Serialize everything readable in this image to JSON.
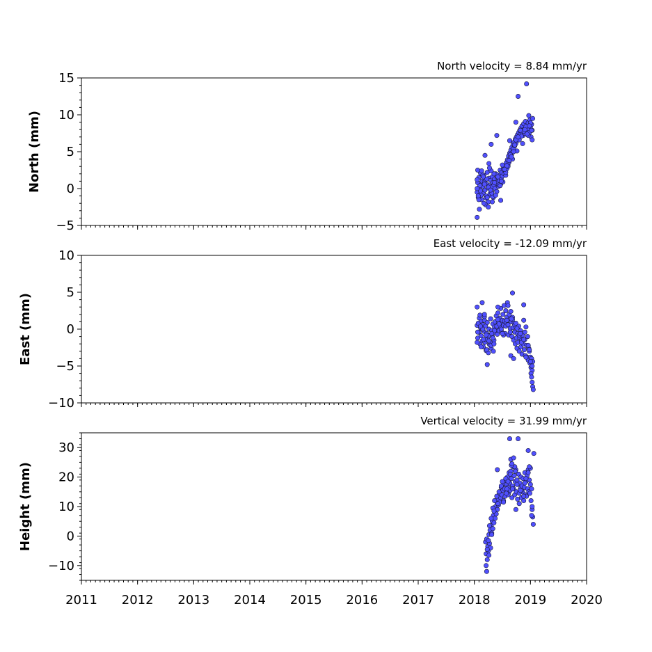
{
  "chart_data": [
    {
      "type": "scatter",
      "title": "North velocity = 8.84 mm/yr",
      "ylabel": "North (mm)",
      "xlim": [
        2011,
        2020
      ],
      "ylim": [
        -5,
        15
      ],
      "yticks": [
        -5,
        0,
        5,
        10,
        15
      ],
      "xticks": [
        2011,
        2012,
        2013,
        2014,
        2015,
        2016,
        2017,
        2018,
        2019,
        2020
      ],
      "color": "#5050ff",
      "series": [
        {
          "x": [
            2018.05,
            2018.06,
            2018.07,
            2018.08,
            2018.09,
            2018.1,
            2018.11,
            2018.12,
            2018.13,
            2018.14,
            2018.15,
            2018.16,
            2018.17,
            2018.18,
            2018.19,
            2018.2,
            2018.21,
            2018.22,
            2018.23,
            2018.24,
            2018.25,
            2018.26,
            2018.27,
            2018.28,
            2018.29,
            2018.3,
            2018.31,
            2018.32,
            2018.33,
            2018.34,
            2018.35,
            2018.36,
            2018.37,
            2018.38,
            2018.39,
            2018.4,
            2018.41,
            2018.42,
            2018.43,
            2018.44,
            2018.45,
            2018.46,
            2018.47,
            2018.48,
            2018.49,
            2018.5,
            2018.51,
            2018.52,
            2018.53,
            2018.54,
            2018.55,
            2018.56,
            2018.57,
            2018.58,
            2018.59,
            2018.6,
            2018.61,
            2018.62,
            2018.63,
            2018.64,
            2018.65,
            2018.66,
            2018.67,
            2018.68,
            2018.69,
            2018.7,
            2018.71,
            2018.72,
            2018.73,
            2018.74,
            2018.75,
            2018.76,
            2018.77,
            2018.78,
            2018.79,
            2018.8,
            2018.81,
            2018.82,
            2018.83,
            2018.84,
            2018.85,
            2018.86,
            2018.87,
            2018.88,
            2018.89,
            2018.9,
            2018.91,
            2018.92,
            2018.93,
            2018.94,
            2018.95,
            2018.96,
            2018.97,
            2018.98,
            2018.99,
            2019.0,
            2019.01,
            2019.02,
            2019.03,
            2019.04,
            2018.05,
            2018.08,
            2018.1,
            2018.12,
            2018.15,
            2018.18,
            2018.2,
            2018.22,
            2018.25,
            2018.28,
            2018.3,
            2018.33,
            2018.36,
            2018.4,
            2018.44,
            2018.48,
            2018.52,
            2018.56,
            2018.6,
            2018.64,
            2018.68,
            2018.72,
            2018.76,
            2018.8,
            2018.84,
            2018.88,
            2018.92,
            2018.96,
            2019.0,
            2019.03,
            2018.06,
            2018.11,
            2018.16,
            2018.21,
            2018.26,
            2018.31,
            2018.35,
            2018.42,
            2018.5,
            2018.58,
            2018.66,
            2018.74,
            2018.82,
            2018.9,
            2018.98,
            2018.05,
            2018.07,
            2018.09,
            2018.13,
            2018.17,
            2018.19,
            2018.23,
            2018.27,
            2018.29,
            2018.32,
            2018.38,
            2018.46,
            2018.54,
            2018.62,
            2018.7,
            2018.78,
            2018.86,
            2018.94,
            2019.02,
            2018.05,
            2018.25,
            2018.3,
            2018.4,
            2018.47,
            2018.63,
            2018.78,
            2018.93,
            2018.74,
            2018.97
          ],
          "y": [
            -0.5,
            0.8,
            -1.2,
            1.5,
            0.2,
            -0.8,
            2.1,
            0.5,
            -1.5,
            1.0,
            0.3,
            -0.6,
            1.8,
            0.9,
            -0.2,
            1.2,
            -1.0,
            0.6,
            2.2,
            0.1,
            -1.8,
            1.4,
            0.4,
            -0.9,
            1.1,
            0.2,
            -0.5,
            1.6,
            0.8,
            -1.2,
            0.5,
            1.3,
            0.0,
            2.0,
            0.7,
            -0.4,
            1.5,
            0.9,
            0.3,
            1.8,
            1.1,
            2.5,
            0.6,
            1.4,
            2.2,
            1.7,
            0.9,
            2.8,
            2.0,
            3.1,
            2.4,
            1.8,
            3.5,
            2.7,
            3.9,
            3.2,
            4.4,
            3.6,
            4.8,
            4.1,
            5.2,
            4.5,
            5.6,
            4.9,
            6.0,
            5.4,
            6.3,
            5.8,
            6.7,
            6.1,
            7.0,
            6.5,
            7.3,
            6.8,
            7.6,
            7.1,
            7.9,
            7.4,
            8.2,
            7.7,
            8.5,
            7.9,
            7.2,
            8.8,
            8.0,
            7.5,
            9.1,
            8.3,
            7.8,
            8.6,
            7.3,
            8.9,
            8.1,
            7.6,
            9.3,
            8.4,
            7.0,
            8.7,
            7.9,
            9.5,
            1.2,
            -1.5,
            0.4,
            -0.9,
            1.8,
            0.6,
            -2.2,
            1.3,
            0.2,
            -0.7,
            2.4,
            -1.1,
            0.8,
            1.9,
            0.5,
            1.0,
            2.6,
            2.2,
            3.0,
            4.6,
            4.0,
            5.9,
            5.1,
            6.6,
            7.1,
            7.8,
            8.4,
            7.2,
            8.9,
            6.6,
            2.5,
            -0.3,
            1.6,
            -1.3,
            3.4,
            -0.6,
            2.0,
            1.6,
            3.2,
            3.1,
            4.3,
            6.6,
            7.9,
            8.0,
            8.5,
            0.0,
            -1.0,
            -2.8,
            2.4,
            -2.0,
            4.5,
            -1.2,
            2.8,
            -0.2,
            -1.8,
            -0.9,
            0.4,
            2.6,
            3.8,
            5.0,
            7.0,
            6.1,
            7.4,
            7.9,
            -3.9,
            -2.5,
            6.0,
            7.2,
            -1.6,
            6.5,
            12.5,
            14.2,
            9.0,
            9.9
          ]
        }
      ]
    },
    {
      "type": "scatter",
      "title": "East velocity = -12.09 mm/yr",
      "ylabel": "East (mm)",
      "xlim": [
        2011,
        2020
      ],
      "ylim": [
        -10,
        10
      ],
      "yticks": [
        -10,
        -5,
        0,
        5,
        10
      ],
      "xticks": [
        2011,
        2012,
        2013,
        2014,
        2015,
        2016,
        2017,
        2018,
        2019,
        2020
      ],
      "color": "#5050ff",
      "series": [
        {
          "x": [
            2018.05,
            2018.06,
            2018.07,
            2018.08,
            2018.09,
            2018.1,
            2018.11,
            2018.12,
            2018.13,
            2018.14,
            2018.15,
            2018.16,
            2018.17,
            2018.18,
            2018.19,
            2018.2,
            2018.21,
            2018.22,
            2018.23,
            2018.24,
            2018.25,
            2018.26,
            2018.27,
            2018.28,
            2018.29,
            2018.3,
            2018.31,
            2018.32,
            2018.33,
            2018.34,
            2018.35,
            2018.36,
            2018.37,
            2018.38,
            2018.39,
            2018.4,
            2018.41,
            2018.42,
            2018.43,
            2018.44,
            2018.45,
            2018.46,
            2018.47,
            2018.48,
            2018.49,
            2018.5,
            2018.51,
            2018.52,
            2018.53,
            2018.54,
            2018.55,
            2018.56,
            2018.57,
            2018.58,
            2018.59,
            2018.6,
            2018.61,
            2018.62,
            2018.63,
            2018.64,
            2018.65,
            2018.66,
            2018.67,
            2018.68,
            2018.69,
            2018.7,
            2018.71,
            2018.72,
            2018.73,
            2018.74,
            2018.75,
            2018.76,
            2018.77,
            2018.78,
            2018.79,
            2018.8,
            2018.81,
            2018.82,
            2018.83,
            2018.84,
            2018.85,
            2018.86,
            2018.87,
            2018.88,
            2018.89,
            2018.9,
            2018.91,
            2018.92,
            2018.93,
            2018.94,
            2018.95,
            2018.96,
            2018.97,
            2018.98,
            2018.99,
            2019.0,
            2019.01,
            2019.02,
            2019.03,
            2019.04,
            2018.05,
            2018.08,
            2018.1,
            2018.12,
            2018.15,
            2018.18,
            2018.2,
            2018.22,
            2018.25,
            2018.28,
            2018.3,
            2018.33,
            2018.36,
            2018.4,
            2018.44,
            2018.48,
            2018.52,
            2018.56,
            2018.6,
            2018.64,
            2018.68,
            2018.72,
            2018.76,
            2018.8,
            2018.84,
            2018.88,
            2018.92,
            2018.96,
            2019.0,
            2019.03,
            2018.06,
            2018.11,
            2018.16,
            2018.21,
            2018.26,
            2018.31,
            2018.35,
            2018.42,
            2018.5,
            2018.58,
            2018.66,
            2018.74,
            2018.82,
            2018.9,
            2018.98,
            2019.01,
            2019.02,
            2019.03,
            2019.04,
            2019.05,
            2018.05,
            2018.18,
            2018.23,
            2018.42,
            2018.6,
            2018.65,
            2018.7,
            2018.88,
            2018.14,
            2018.68
          ],
          "y": [
            0.5,
            -1.2,
            0.8,
            -0.4,
            1.5,
            -2.0,
            0.2,
            -0.9,
            1.1,
            -1.6,
            0.6,
            -2.4,
            -0.3,
            1.2,
            -1.8,
            0.4,
            -2.9,
            -0.6,
            0.9,
            -1.4,
            -3.2,
            0.0,
            -2.1,
            -0.8,
            1.4,
            -2.6,
            -0.2,
            -1.0,
            0.7,
            -3.0,
            -1.5,
            0.3,
            1.0,
            -0.5,
            1.8,
            0.2,
            -0.7,
            2.2,
            0.9,
            -0.2,
            1.5,
            0.4,
            2.8,
            0.8,
            -0.4,
            1.2,
            2.0,
            0.5,
            3.2,
            1.1,
            -0.6,
            2.5,
            0.9,
            1.6,
            3.6,
            0.6,
            -0.8,
            2.0,
            1.3,
            0.1,
            2.4,
            1.0,
            -1.0,
            1.6,
            0.2,
            -1.5,
            0.8,
            -0.4,
            -2.0,
            0.3,
            -1.2,
            -2.6,
            -0.6,
            -1.8,
            0.4,
            -3.0,
            -1.2,
            -0.2,
            -2.4,
            -1.5,
            -3.4,
            -0.8,
            -2.0,
            1.2,
            -2.8,
            -1.4,
            -3.6,
            0.3,
            -2.2,
            -3.8,
            -1.0,
            -4.2,
            -2.6,
            -3.0,
            -4.6,
            -3.8,
            -5.2,
            -4.0,
            -5.6,
            -4.4,
            -1.8,
            -0.4,
            1.9,
            -2.4,
            0.0,
            1.7,
            -1.4,
            -2.8,
            -0.9,
            -1.8,
            -2.2,
            -1.2,
            -0.2,
            0.4,
            0.7,
            0.0,
            -0.8,
            0.4,
            0.6,
            -0.4,
            1.3,
            0.6,
            0.1,
            -0.8,
            -1.8,
            -1.4,
            -3.8,
            -2.2,
            -4.4,
            -5.0,
            -0.4,
            0.4,
            -1.4,
            -0.8,
            -1.6,
            -0.6,
            -2.0,
            1.3,
            -0.6,
            1.2,
            1.4,
            0.8,
            -0.6,
            -0.4,
            -2.8,
            -6.0,
            -6.5,
            -7.2,
            -7.8,
            -8.2,
            3.0,
            2.0,
            -4.8,
            3.0,
            3.2,
            -3.6,
            -4.0,
            3.3,
            3.6,
            4.9
          ]
        }
      ]
    },
    {
      "type": "scatter",
      "title": "Vertical velocity = 31.99 mm/yr",
      "ylabel": "Height (mm)",
      "xlim": [
        2011,
        2020
      ],
      "ylim": [
        -15,
        35
      ],
      "yticks": [
        -10,
        0,
        10,
        20,
        30
      ],
      "xticks": [
        2011,
        2012,
        2013,
        2014,
        2015,
        2016,
        2017,
        2018,
        2019,
        2020
      ],
      "xticklabels": [
        "2011",
        "2012",
        "2013",
        "2014",
        "2015",
        "2016",
        "2017",
        "2018",
        "2019",
        "2020"
      ],
      "color": "#5050ff",
      "series": [
        {
          "x": [
            2018.2,
            2018.21,
            2018.22,
            2018.23,
            2018.24,
            2018.25,
            2018.26,
            2018.27,
            2018.28,
            2018.29,
            2018.3,
            2018.31,
            2018.32,
            2018.33,
            2018.34,
            2018.35,
            2018.36,
            2018.37,
            2018.38,
            2018.39,
            2018.4,
            2018.41,
            2018.42,
            2018.43,
            2018.44,
            2018.45,
            2018.46,
            2018.47,
            2018.48,
            2018.49,
            2018.5,
            2018.51,
            2018.52,
            2018.53,
            2018.54,
            2018.55,
            2018.56,
            2018.57,
            2018.58,
            2018.59,
            2018.6,
            2018.61,
            2018.62,
            2018.63,
            2018.64,
            2018.65,
            2018.66,
            2018.67,
            2018.68,
            2018.69,
            2018.7,
            2018.71,
            2018.72,
            2018.73,
            2018.74,
            2018.75,
            2018.76,
            2018.77,
            2018.78,
            2018.79,
            2018.8,
            2018.81,
            2018.82,
            2018.83,
            2018.84,
            2018.85,
            2018.86,
            2018.87,
            2018.88,
            2018.89,
            2018.9,
            2018.91,
            2018.92,
            2018.93,
            2018.94,
            2018.95,
            2018.96,
            2018.97,
            2018.98,
            2018.99,
            2019.0,
            2019.01,
            2019.02,
            2019.03,
            2019.04,
            2019.05,
            2018.21,
            2018.23,
            2018.25,
            2018.27,
            2018.3,
            2018.33,
            2018.36,
            2018.4,
            2018.44,
            2018.48,
            2018.52,
            2018.56,
            2018.6,
            2018.64,
            2018.68,
            2018.72,
            2018.76,
            2018.8,
            2018.84,
            2018.88,
            2018.92,
            2018.96,
            2019.0,
            2019.03,
            2018.22,
            2018.26,
            2018.31,
            2018.35,
            2018.42,
            2018.5,
            2018.58,
            2018.66,
            2018.74,
            2018.82,
            2018.9,
            2018.98,
            2019.02,
            2018.63,
            2018.65,
            2018.67,
            2018.7,
            2018.73,
            2018.6,
            2018.78,
            2018.96,
            2019.06,
            2018.41,
            2018.57
          ],
          "y": [
            -2.0,
            -6.0,
            -1.0,
            -8.0,
            -3.5,
            -5.0,
            0.5,
            -2.5,
            2.0,
            -4.0,
            3.5,
            1.0,
            5.0,
            2.5,
            7.0,
            4.5,
            8.5,
            6.0,
            10.0,
            7.5,
            11.5,
            9.0,
            12.5,
            10.5,
            14.0,
            11.5,
            15.0,
            13.0,
            16.5,
            14.0,
            17.0,
            15.5,
            12.0,
            18.0,
            16.0,
            13.5,
            19.0,
            15.0,
            17.5,
            20.0,
            16.5,
            14.5,
            21.5,
            18.0,
            15.5,
            22.0,
            19.5,
            13.0,
            17.0,
            23.5,
            16.0,
            20.5,
            14.0,
            18.5,
            22.5,
            15.0,
            19.0,
            12.5,
            17.5,
            21.0,
            14.5,
            18.0,
            16.0,
            20.0,
            13.0,
            17.0,
            15.0,
            19.5,
            12.0,
            16.5,
            21.5,
            14.0,
            18.5,
            13.5,
            20.5,
            16.0,
            22.5,
            15.0,
            19.0,
            14.5,
            17.5,
            12.0,
            16.0,
            9.0,
            6.5,
            4.0,
            -10.0,
            -4.5,
            -1.5,
            3.5,
            6.0,
            9.5,
            12.0,
            13.5,
            15.0,
            17.0,
            11.5,
            19.5,
            18.5,
            21.0,
            16.0,
            23.5,
            17.5,
            11.0,
            15.5,
            13.5,
            19.5,
            21.5,
            23.0,
            10.0,
            -12.0,
            -6.5,
            0.5,
            8.5,
            11.0,
            18.5,
            16.0,
            24.0,
            9.0,
            15.5,
            18.0,
            23.5,
            7.0,
            33.0,
            26.0,
            24.5,
            26.5,
            22.0,
            14.0,
            33.0,
            29.0,
            28.0,
            22.5,
            14.5
          ]
        }
      ]
    }
  ]
}
